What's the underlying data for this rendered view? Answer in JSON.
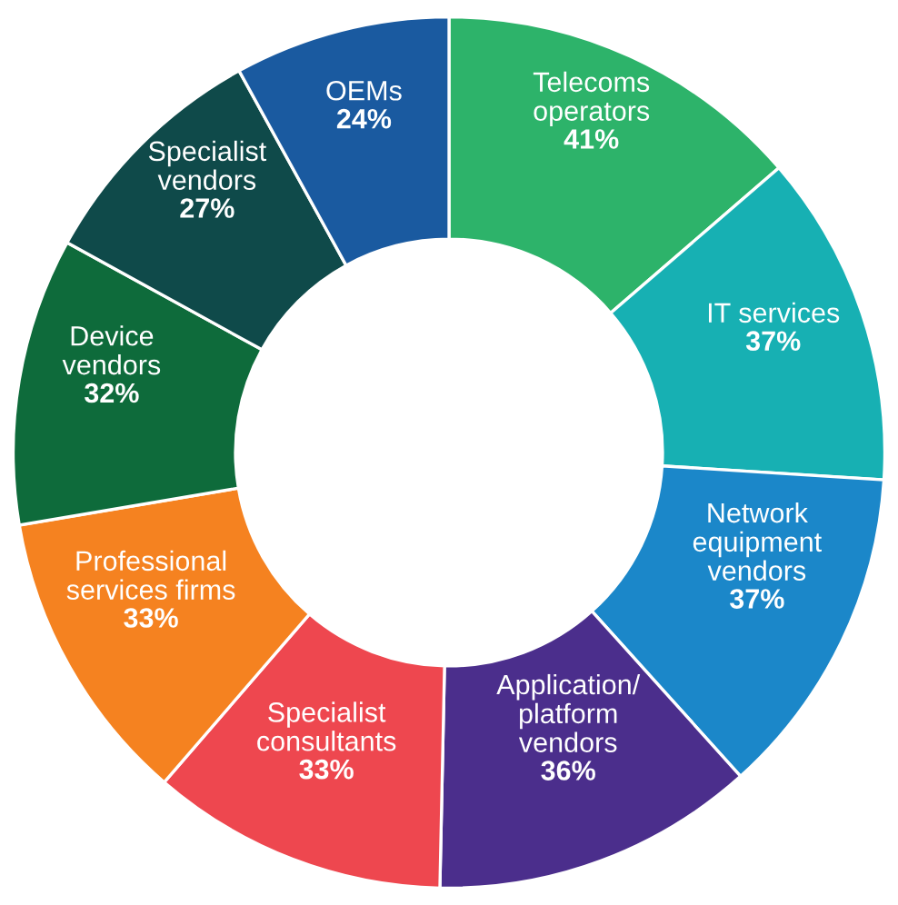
{
  "chart_data": {
    "type": "donut",
    "categories": [
      "Telecoms\noperators",
      "IT services",
      "Network\nequipment\nvendors",
      "Application/\nplatform\nvendors",
      "Specialist\nconsultants",
      "Professional\nservices firms",
      "Device\nvendors",
      "Specialist\nvendors",
      "OEMs"
    ],
    "values": [
      41,
      37,
      37,
      36,
      33,
      33,
      32,
      27,
      24
    ],
    "value_labels": [
      "41%",
      "37%",
      "37%",
      "36%",
      "33%",
      "33%",
      "32%",
      "27%",
      "24%"
    ],
    "colors": [
      "#2db36a",
      "#17b0b3",
      "#1b87c9",
      "#4b2e8c",
      "#ee474f",
      "#f58220",
      "#0e6b3b",
      "#0f4a4a",
      "#1a5aa0"
    ],
    "legend": false
  }
}
